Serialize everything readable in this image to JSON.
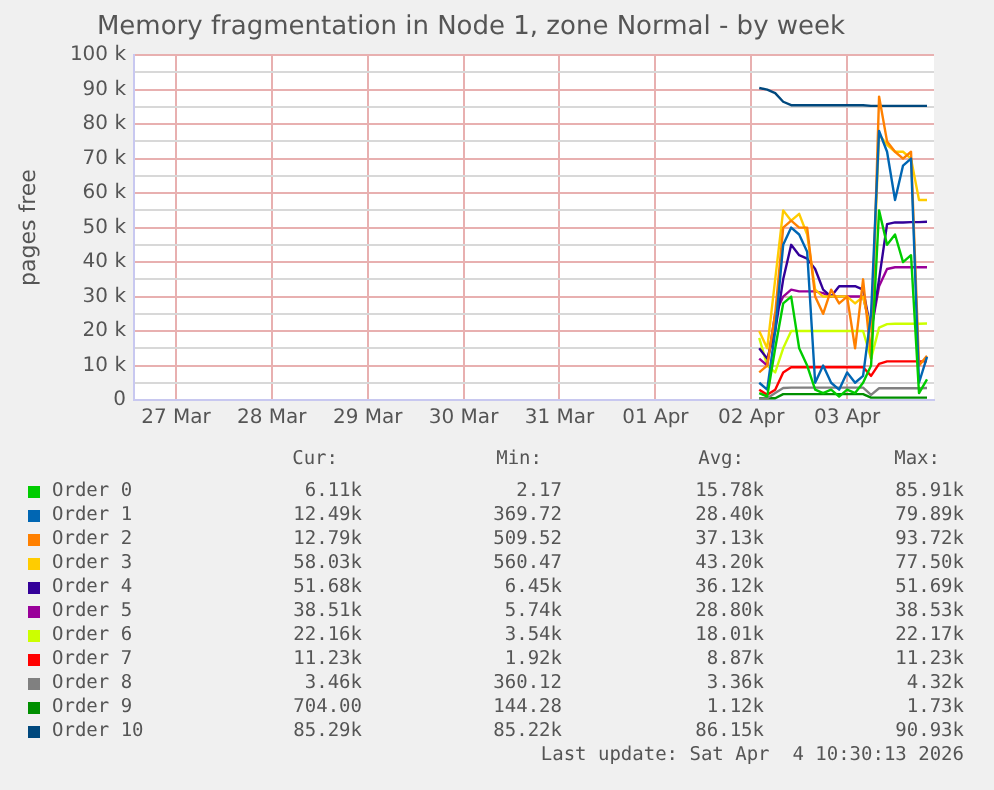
{
  "chart_data": {
    "type": "line",
    "title": "Memory fragmentation in Node 1, zone Normal - by week",
    "ylabel": "pages free",
    "x": [
      "2026-04-02T02:00",
      "2026-04-02T04:00",
      "2026-04-02T06:00",
      "2026-04-02T08:00",
      "2026-04-02T10:00",
      "2026-04-02T12:00",
      "2026-04-02T14:00",
      "2026-04-02T16:00",
      "2026-04-02T18:00",
      "2026-04-02T20:00",
      "2026-04-02T22:00",
      "2026-04-03T00:00",
      "2026-04-03T02:00",
      "2026-04-03T04:00",
      "2026-04-03T06:00",
      "2026-04-03T08:00",
      "2026-04-03T10:00",
      "2026-04-03T12:00",
      "2026-04-03T14:00",
      "2026-04-03T16:00",
      "2026-04-03T18:00",
      "2026-04-03T20:00"
    ],
    "xlim": [
      "2026-03-26T13:30",
      "2026-04-03T21:45"
    ],
    "xticks": [
      {
        "value": "2026-03-27",
        "label": "27 Mar"
      },
      {
        "value": "2026-03-28",
        "label": "28 Mar"
      },
      {
        "value": "2026-03-29",
        "label": "29 Mar"
      },
      {
        "value": "2026-03-30",
        "label": "30 Mar"
      },
      {
        "value": "2026-03-31",
        "label": "31 Mar"
      },
      {
        "value": "2026-04-01",
        "label": "01 Apr"
      },
      {
        "value": "2026-04-02",
        "label": "02 Apr"
      },
      {
        "value": "2026-04-03",
        "label": "03 Apr"
      }
    ],
    "ylim": [
      0,
      100000
    ],
    "yticks": [
      0,
      {
        "value": 5000,
        "label": null
      },
      {
        "value": 10000,
        "label": "10 k"
      },
      {
        "value": 15000,
        "label": null
      },
      {
        "value": 20000,
        "label": "20 k"
      },
      {
        "value": 25000,
        "label": null
      },
      {
        "value": 30000,
        "label": "30 k"
      },
      {
        "value": 35000,
        "label": null
      },
      {
        "value": 40000,
        "label": "40 k"
      },
      {
        "value": 45000,
        "label": null
      },
      {
        "value": 50000,
        "label": "50 k"
      },
      {
        "value": 55000,
        "label": null
      },
      {
        "value": 60000,
        "label": "60 k"
      },
      {
        "value": 65000,
        "label": null
      },
      {
        "value": 70000,
        "label": "70 k"
      },
      {
        "value": 75000,
        "label": null
      },
      {
        "value": 80000,
        "label": "80 k"
      },
      {
        "value": 85000,
        "label": null
      },
      {
        "value": 90000,
        "label": "90 k"
      },
      {
        "value": 95000,
        "label": null
      },
      {
        "value": 100000,
        "label": "100 k"
      }
    ],
    "grid": true,
    "legend": "bottom",
    "marker": "none",
    "line_style": "solid",
    "series": [
      {
        "name": "Order 0",
        "color": "#00cc00",
        "values": [
          2000,
          1000,
          15000,
          28000,
          30000,
          15000,
          10000,
          3000,
          2000,
          3000,
          1000,
          3000,
          2000,
          5000,
          10000,
          55000,
          45000,
          48000,
          40000,
          42000,
          2000,
          6000
        ]
      },
      {
        "name": "Order 1",
        "color": "#0066b3",
        "values": [
          5000,
          3000,
          20000,
          45000,
          50000,
          48000,
          43000,
          5000,
          10000,
          5000,
          3000,
          8000,
          5000,
          7000,
          25000,
          78000,
          72000,
          58000,
          68000,
          70000,
          5000,
          12500
        ]
      },
      {
        "name": "Order 2",
        "color": "#ff8000",
        "values": [
          8000,
          10000,
          25000,
          50000,
          52000,
          50000,
          50000,
          30000,
          25000,
          32000,
          28000,
          30000,
          15000,
          35000,
          12000,
          88000,
          75000,
          72000,
          70000,
          72000,
          10000,
          12800
        ]
      },
      {
        "name": "Order 3",
        "color": "#ffcc00",
        "values": [
          20000,
          15000,
          35000,
          55000,
          52000,
          54000,
          48000,
          32000,
          30000,
          30000,
          30000,
          30000,
          28000,
          30000,
          20000,
          77000,
          74000,
          72000,
          72000,
          70000,
          58000,
          58000
        ]
      },
      {
        "name": "Order 4",
        "color": "#330099",
        "values": [
          15000,
          12000,
          20000,
          35000,
          45000,
          42000,
          41000,
          38000,
          32000,
          30000,
          33000,
          33000,
          33000,
          32000,
          20000,
          35000,
          51000,
          51500,
          51500,
          51600,
          51600,
          51700
        ]
      },
      {
        "name": "Order 5",
        "color": "#990099",
        "values": [
          12000,
          10000,
          25000,
          30000,
          32000,
          31500,
          31500,
          31500,
          31000,
          30000,
          30000,
          30000,
          30000,
          30000,
          20000,
          33000,
          38000,
          38500,
          38500,
          38500,
          38500,
          38500
        ]
      },
      {
        "name": "Order 6",
        "color": "#ccff00",
        "values": [
          18000,
          10000,
          8000,
          15000,
          20000,
          20000,
          20000,
          20000,
          20000,
          20000,
          20000,
          20000,
          20000,
          20000,
          12000,
          21000,
          22000,
          22100,
          22100,
          22100,
          22100,
          22200
        ]
      },
      {
        "name": "Order 7",
        "color": "#ff0000",
        "values": [
          3000,
          1500,
          3000,
          8000,
          9500,
          9500,
          9500,
          9500,
          9500,
          9500,
          9500,
          9500,
          9500,
          9500,
          7000,
          10500,
          11200,
          11200,
          11200,
          11200,
          11200,
          11200
        ]
      },
      {
        "name": "Order 8",
        "color": "#808080",
        "values": [
          400,
          500,
          2000,
          3500,
          3600,
          3600,
          3600,
          3600,
          3600,
          3600,
          3600,
          3600,
          3600,
          3600,
          1500,
          3400,
          3400,
          3400,
          3400,
          3400,
          3400,
          3500
        ]
      },
      {
        "name": "Order 9",
        "color": "#008f00",
        "values": [
          500,
          500,
          500,
          1700,
          1700,
          1700,
          1700,
          1700,
          1700,
          1700,
          1700,
          1700,
          1700,
          1700,
          700,
          700,
          700,
          700,
          700,
          700,
          700,
          700
        ]
      },
      {
        "name": "Order 10",
        "color": "#00487d",
        "values": [
          90500,
          90000,
          89000,
          86500,
          85500,
          85500,
          85500,
          85500,
          85500,
          85500,
          85500,
          85500,
          85500,
          85500,
          85300,
          85300,
          85300,
          85300,
          85300,
          85300,
          85300,
          85300
        ]
      }
    ],
    "annotations": [
      "Cur:",
      "Min:",
      "Avg:",
      "Max:",
      "6.11k",
      "2.17",
      "15.78k",
      "85.91k",
      "12.49k",
      "369.72",
      "28.40k",
      "79.89k",
      "12.79k",
      "509.52",
      "37.13k",
      "93.72k",
      "58.03k",
      "560.47",
      "43.20k",
      "77.50k",
      "51.68k",
      "6.45k",
      "36.12k",
      "51.69k",
      "38.51k",
      "5.74k",
      "28.80k",
      "38.53k",
      "22.16k",
      "3.54k",
      "18.01k",
      "22.17k",
      "11.23k",
      "1.92k",
      "8.87k",
      "11.23k",
      "3.46k",
      "360.12",
      "3.36k",
      "4.32k",
      "704.00",
      "144.28",
      "1.12k",
      "1.73k",
      "85.29k",
      "85.22k",
      "86.15k",
      "90.93k",
      "Last update: Sat Apr  4 10:30:13 2026"
    ]
  }
}
